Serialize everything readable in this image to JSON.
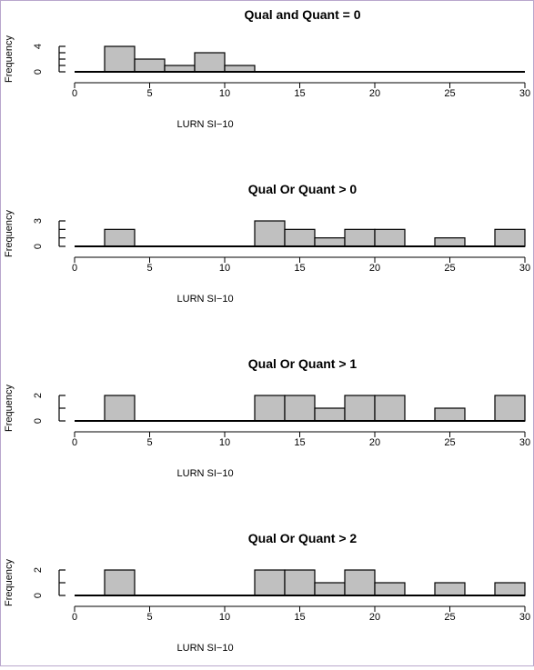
{
  "chart_data": [
    {
      "type": "bar",
      "title": "Qual and Quant = 0",
      "xlabel": "LURN SI−10",
      "ylabel": "Frequency",
      "xlim": [
        0,
        30
      ],
      "xticks": [
        "0",
        "5",
        "10",
        "15",
        "20",
        "25",
        "30"
      ],
      "yticks": [
        "0",
        "4"
      ],
      "ymax_axis": 4,
      "bins": [
        [
          2,
          4
        ],
        [
          4,
          6
        ],
        [
          6,
          8
        ],
        [
          8,
          10
        ],
        [
          10,
          12
        ],
        [
          12,
          14
        ],
        [
          14,
          16
        ],
        [
          16,
          18
        ],
        [
          18,
          20
        ],
        [
          20,
          22
        ],
        [
          22,
          24
        ],
        [
          24,
          26
        ],
        [
          26,
          28
        ],
        [
          28,
          30
        ]
      ],
      "values": [
        4,
        2,
        1,
        3,
        1,
        0,
        0,
        0,
        0,
        0,
        0,
        0,
        0,
        0
      ]
    },
    {
      "type": "bar",
      "title": "Qual Or Quant > 0",
      "xlabel": "LURN SI−10",
      "ylabel": "Frequency",
      "xlim": [
        0,
        30
      ],
      "xticks": [
        "0",
        "5",
        "10",
        "15",
        "20",
        "25",
        "30"
      ],
      "yticks": [
        "0",
        "3"
      ],
      "ymax_axis": 3,
      "bins": [
        [
          2,
          4
        ],
        [
          4,
          6
        ],
        [
          6,
          8
        ],
        [
          8,
          10
        ],
        [
          10,
          12
        ],
        [
          12,
          14
        ],
        [
          14,
          16
        ],
        [
          16,
          18
        ],
        [
          18,
          20
        ],
        [
          20,
          22
        ],
        [
          22,
          24
        ],
        [
          24,
          26
        ],
        [
          26,
          28
        ],
        [
          28,
          30
        ]
      ],
      "values": [
        2,
        0,
        0,
        0,
        0,
        3,
        2,
        1,
        2,
        2,
        0,
        1,
        0,
        2
      ]
    },
    {
      "type": "bar",
      "title": "Qual Or Quant > 1",
      "xlabel": "LURN SI−10",
      "ylabel": "Frequency",
      "xlim": [
        0,
        30
      ],
      "xticks": [
        "0",
        "5",
        "10",
        "15",
        "20",
        "25",
        "30"
      ],
      "yticks": [
        "0",
        "2"
      ],
      "ymax_axis": 2,
      "bins": [
        [
          2,
          4
        ],
        [
          4,
          6
        ],
        [
          6,
          8
        ],
        [
          8,
          10
        ],
        [
          10,
          12
        ],
        [
          12,
          14
        ],
        [
          14,
          16
        ],
        [
          16,
          18
        ],
        [
          18,
          20
        ],
        [
          20,
          22
        ],
        [
          22,
          24
        ],
        [
          24,
          26
        ],
        [
          26,
          28
        ],
        [
          28,
          30
        ]
      ],
      "values": [
        2,
        0,
        0,
        0,
        0,
        2,
        2,
        1,
        2,
        2,
        0,
        1,
        0,
        2
      ]
    },
    {
      "type": "bar",
      "title": "Qual Or Quant > 2",
      "xlabel": "LURN SI−10",
      "ylabel": "Frequency",
      "xlim": [
        0,
        30
      ],
      "xticks": [
        "0",
        "5",
        "10",
        "15",
        "20",
        "25",
        "30"
      ],
      "yticks": [
        "0",
        "2"
      ],
      "ymax_axis": 2,
      "bins": [
        [
          2,
          4
        ],
        [
          4,
          6
        ],
        [
          6,
          8
        ],
        [
          8,
          10
        ],
        [
          10,
          12
        ],
        [
          12,
          14
        ],
        [
          14,
          16
        ],
        [
          16,
          18
        ],
        [
          18,
          20
        ],
        [
          20,
          22
        ],
        [
          22,
          24
        ],
        [
          24,
          26
        ],
        [
          26,
          28
        ],
        [
          28,
          30
        ]
      ],
      "values": [
        2,
        0,
        0,
        0,
        0,
        2,
        2,
        1,
        2,
        1,
        0,
        1,
        0,
        1
      ]
    }
  ],
  "colors": {
    "bar_fill": "#c0c0c0",
    "stroke": "#000000"
  }
}
